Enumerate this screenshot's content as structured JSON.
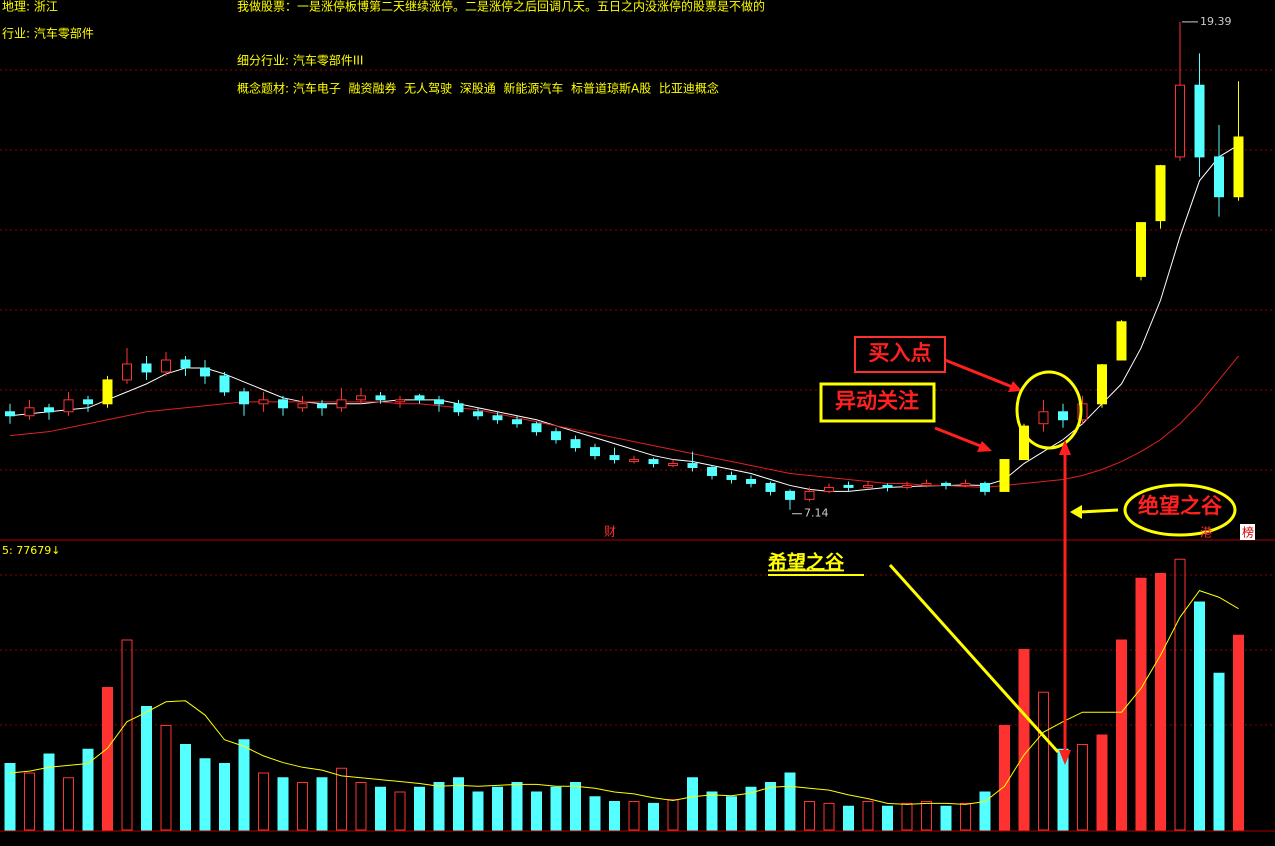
{
  "header": {
    "region": "地理: 浙江",
    "motto": "我做股票：一是涨停板博第二天继续涨停。二是涨停之后回调几天。五日之内没涨停的股票是不做的",
    "industry": "行业: 汽车零部件",
    "sub_industry": "细分行业: 汽车零部件III",
    "concepts": "概念题材: 汽车电子  融资融券  无人驾驶  深股通  新能源汽车  标普道琼斯A股  比亚迪概念"
  },
  "chart_data": {
    "type": "candlestick",
    "open": [
      9.6,
      9.5,
      9.7,
      9.6,
      9.9,
      9.8,
      10.4,
      10.8,
      10.6,
      10.9,
      10.7,
      10.5,
      10.1,
      9.8,
      9.9,
      9.7,
      9.8,
      9.7,
      9.9,
      10.0,
      9.85,
      10.0,
      9.9,
      9.8,
      9.6,
      9.5,
      9.4,
      9.3,
      9.1,
      8.9,
      8.7,
      8.5,
      8.35,
      8.4,
      8.25,
      8.3,
      8.2,
      8.0,
      7.9,
      7.8,
      7.6,
      7.4,
      7.6,
      7.75,
      7.7,
      7.75,
      7.7,
      7.75,
      7.8,
      7.75,
      7.8,
      7.6,
      8.4,
      9.3,
      9.6,
      9.4,
      9.8,
      10.9,
      13.0,
      14.4,
      16.0,
      17.8,
      16.0,
      15.0
    ],
    "high": [
      9.8,
      9.9,
      9.8,
      10.1,
      10.0,
      10.5,
      11.2,
      11.0,
      11.1,
      11.0,
      10.9,
      10.6,
      10.2,
      10.1,
      10.0,
      10.0,
      9.9,
      10.2,
      10.2,
      10.1,
      10.0,
      10.05,
      10.0,
      9.9,
      9.7,
      9.6,
      9.5,
      9.35,
      9.2,
      9.0,
      8.8,
      8.7,
      8.5,
      8.45,
      8.4,
      8.6,
      8.25,
      8.1,
      8.0,
      7.85,
      7.65,
      7.7,
      7.8,
      7.85,
      7.85,
      7.8,
      7.85,
      7.9,
      7.85,
      7.9,
      7.85,
      8.4,
      9.3,
      9.9,
      9.8,
      10.0,
      10.8,
      11.9,
      14.35,
      15.8,
      19.39,
      18.6,
      16.8,
      17.9
    ],
    "low": [
      9.3,
      9.4,
      9.4,
      9.5,
      9.6,
      9.7,
      10.3,
      10.4,
      10.5,
      10.5,
      10.3,
      10.0,
      9.5,
      9.6,
      9.5,
      9.6,
      9.5,
      9.6,
      9.8,
      9.8,
      9.7,
      9.8,
      9.6,
      9.5,
      9.4,
      9.3,
      9.2,
      9.0,
      8.8,
      8.6,
      8.4,
      8.3,
      8.3,
      8.2,
      8.2,
      8.1,
      7.9,
      7.8,
      7.7,
      7.5,
      7.14,
      7.35,
      7.55,
      7.6,
      7.65,
      7.6,
      7.65,
      7.7,
      7.65,
      7.7,
      7.5,
      7.6,
      8.4,
      9.1,
      9.2,
      9.3,
      9.7,
      10.9,
      12.9,
      14.2,
      15.9,
      15.5,
      14.5,
      14.9
    ],
    "close": [
      9.5,
      9.7,
      9.6,
      9.9,
      9.8,
      10.4,
      10.8,
      10.6,
      10.9,
      10.7,
      10.5,
      10.1,
      9.8,
      9.9,
      9.7,
      9.8,
      9.7,
      9.9,
      10.0,
      9.9,
      9.9,
      9.9,
      9.8,
      9.6,
      9.5,
      9.4,
      9.3,
      9.1,
      8.9,
      8.7,
      8.5,
      8.4,
      8.4,
      8.3,
      8.3,
      8.2,
      8.0,
      7.9,
      7.8,
      7.6,
      7.4,
      7.6,
      7.7,
      7.7,
      7.75,
      7.7,
      7.75,
      7.8,
      7.75,
      7.8,
      7.6,
      8.4,
      9.24,
      9.6,
      9.4,
      9.8,
      10.78,
      11.86,
      14.35,
      15.78,
      17.8,
      16.0,
      15.0,
      16.5
    ],
    "up_color": "#ff3232",
    "down_color": "#54ffff",
    "limit_up": [
      5,
      51,
      52,
      56,
      57,
      58,
      59,
      63
    ],
    "limit_up_color": "#ffff00",
    "ylim": [
      6.38,
      19.94
    ],
    "ma": [
      {
        "color": "#ffffff",
        "values": [
          9.5,
          9.55,
          9.6,
          9.65,
          9.7,
          9.9,
          10.1,
          10.3,
          10.55,
          10.7,
          10.7,
          10.55,
          10.35,
          10.15,
          9.95,
          9.85,
          9.8,
          9.8,
          9.8,
          9.85,
          9.9,
          9.9,
          9.9,
          9.8,
          9.7,
          9.6,
          9.5,
          9.4,
          9.25,
          9.1,
          8.95,
          8.8,
          8.65,
          8.5,
          8.4,
          8.35,
          8.25,
          8.15,
          8.05,
          7.9,
          7.75,
          7.65,
          7.6,
          7.6,
          7.65,
          7.7,
          7.72,
          7.74,
          7.75,
          7.76,
          7.75,
          7.9,
          8.3,
          8.6,
          8.9,
          9.3,
          9.8,
          10.3,
          11.2,
          12.4,
          14.0,
          15.4,
          16.0,
          16.3
        ]
      },
      {
        "color": "#e02020",
        "values": [
          9.0,
          9.05,
          9.1,
          9.2,
          9.3,
          9.4,
          9.5,
          9.6,
          9.65,
          9.7,
          9.75,
          9.8,
          9.85,
          9.85,
          9.85,
          9.85,
          9.85,
          9.85,
          9.85,
          9.85,
          9.8,
          9.8,
          9.75,
          9.7,
          9.65,
          9.55,
          9.45,
          9.35,
          9.25,
          9.15,
          9.05,
          8.95,
          8.85,
          8.75,
          8.65,
          8.55,
          8.45,
          8.35,
          8.25,
          8.15,
          8.05,
          8.0,
          7.95,
          7.9,
          7.85,
          7.8,
          7.8,
          7.75,
          7.75,
          7.72,
          7.7,
          7.75,
          7.8,
          7.85,
          7.9,
          8.0,
          8.15,
          8.35,
          8.6,
          8.9,
          9.3,
          9.8,
          10.4,
          11.0
        ]
      }
    ],
    "volume": {
      "label": "5: 77679↓",
      "ylim": [
        0,
        300000
      ],
      "values": [
        70000,
        60000,
        80000,
        55000,
        85000,
        150000,
        200000,
        130000,
        110000,
        90000,
        75000,
        70000,
        95000,
        60000,
        55000,
        50000,
        55000,
        65000,
        50000,
        45000,
        40000,
        45000,
        50000,
        55000,
        40000,
        45000,
        50000,
        40000,
        45000,
        50000,
        35000,
        30000,
        30000,
        28000,
        32000,
        55000,
        40000,
        35000,
        45000,
        50000,
        60000,
        30000,
        28000,
        25000,
        30000,
        25000,
        28000,
        30000,
        25000,
        28000,
        40000,
        110000,
        190000,
        145000,
        85000,
        90000,
        100000,
        200000,
        265000,
        270000,
        285000,
        240000,
        165000,
        205000
      ],
      "ma": {
        "color": "#ffff00",
        "values": [
          60000,
          62000,
          66000,
          68000,
          70000,
          86000,
          114000,
          124000,
          135000,
          136000,
          121000,
          95000,
          88000,
          78000,
          71000,
          66000,
          63000,
          57000,
          55000,
          53000,
          51000,
          49000,
          46000,
          47000,
          46000,
          47000,
          48000,
          48000,
          46000,
          46000,
          44000,
          40000,
          38000,
          34000,
          31000,
          35000,
          37000,
          36000,
          39000,
          45000,
          46000,
          44000,
          42000,
          37000,
          33000,
          28000,
          27000,
          28000,
          28000,
          27000,
          30000,
          46000,
          79000,
          103000,
          114000,
          124000,
          124000,
          124000,
          149000,
          184000,
          224000,
          252000,
          245000,
          233000
        ]
      }
    },
    "annotations": {
      "buy_point": "买入点",
      "unusual": "异动关注",
      "hope_valley": "希望之谷",
      "despair_valley": "绝望之谷",
      "cai": "财",
      "gang": "港",
      "bang": "榜"
    }
  }
}
